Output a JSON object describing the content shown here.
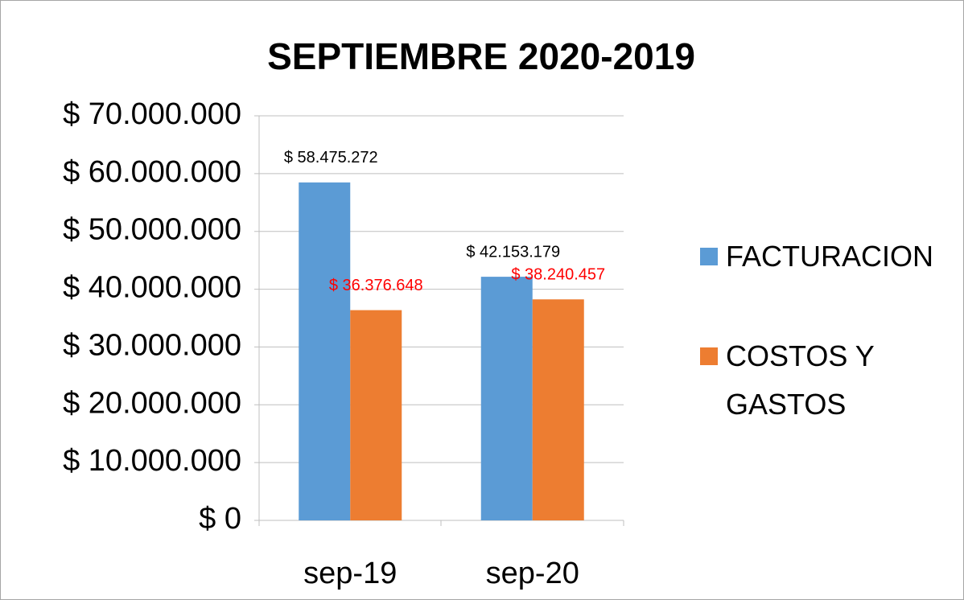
{
  "chart_data": {
    "type": "bar",
    "title": "SEPTIEMBRE 2020-2019",
    "categories": [
      "sep-19",
      "sep-20"
    ],
    "series": [
      {
        "name": "FACTURACION",
        "color": "#5b9bd5",
        "values": [
          58475272,
          42153179
        ],
        "value_labels": [
          "$ 58.475.272",
          "$ 42.153.179"
        ],
        "value_label_color": "#000000"
      },
      {
        "name": "COSTOS Y GASTOS",
        "color": "#ed7d31",
        "values": [
          36376648,
          38240457
        ],
        "value_labels": [
          "$ 36.376.648",
          "$ 38.240.457"
        ],
        "value_label_color": "#ff0000"
      }
    ],
    "ylim": [
      0,
      70000000
    ],
    "yticks": [
      {
        "value": 0,
        "label": "$ 0"
      },
      {
        "value": 10000000,
        "label": "$ 10.000.000"
      },
      {
        "value": 20000000,
        "label": "$ 20.000.000"
      },
      {
        "value": 30000000,
        "label": "$ 30.000.000"
      },
      {
        "value": 40000000,
        "label": "$ 40.000.000"
      },
      {
        "value": 50000000,
        "label": "$ 50.000.000"
      },
      {
        "value": 60000000,
        "label": "$ 60.000.000"
      },
      {
        "value": 70000000,
        "label": "$ 70.000.000"
      }
    ],
    "grid": true,
    "legend": "right"
  }
}
